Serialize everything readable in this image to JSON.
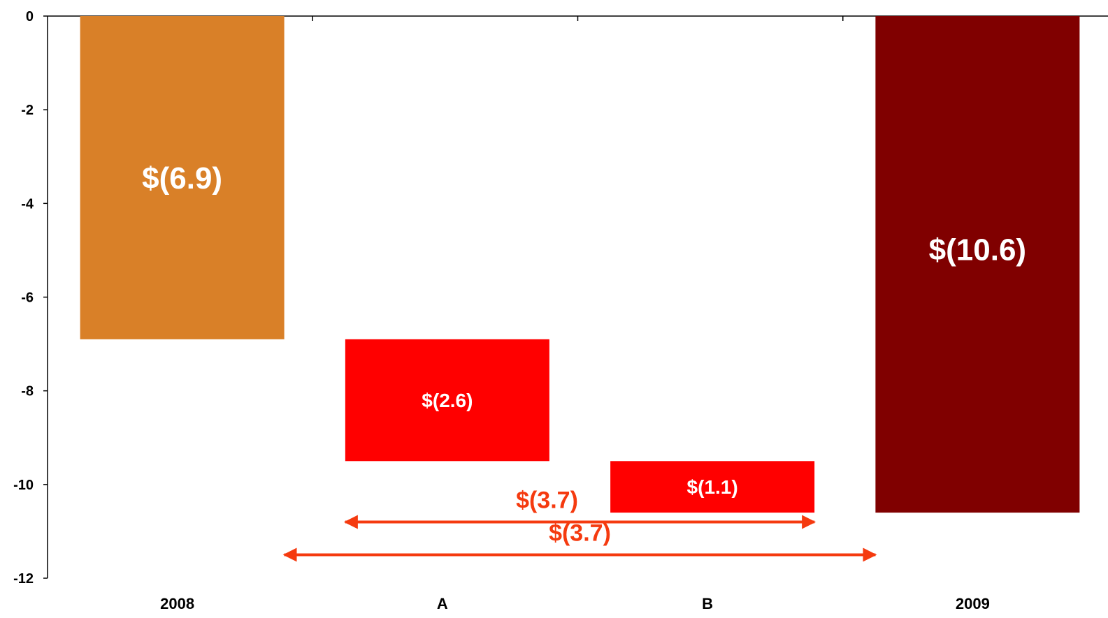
{
  "chart_data": {
    "type": "bar",
    "subtype": "waterfall",
    "title": "",
    "xlabel": "",
    "ylabel": "",
    "ylim": [
      -12,
      0
    ],
    "yticks": [
      0,
      -2,
      -4,
      -6,
      -8,
      -10,
      -12
    ],
    "categories": [
      "2008",
      "A",
      "B",
      "2009"
    ],
    "bars": [
      {
        "category": "2008",
        "start": 0,
        "end": -6.9,
        "label": "$(6.9)",
        "color": "#d98028"
      },
      {
        "category": "A",
        "start": -6.9,
        "end": -9.5,
        "label": "$(2.6)",
        "color": "#ff0000"
      },
      {
        "category": "B",
        "start": -9.5,
        "end": -10.6,
        "label": "$(1.1)",
        "color": "#ff0000"
      },
      {
        "category": "2009",
        "start": 0,
        "end": -10.6,
        "label": "$(10.6)",
        "color": "#800000"
      }
    ],
    "annotations": [
      {
        "label": "$(3.7)",
        "from_category": "A",
        "to_category": "B",
        "y": -10.8,
        "color": "#f53a0f"
      },
      {
        "label": "$(3.7)",
        "from_category": "2008",
        "to_category": "2009",
        "y": -11.5,
        "color": "#f53a0f"
      }
    ],
    "grid": false,
    "legend": "none"
  }
}
